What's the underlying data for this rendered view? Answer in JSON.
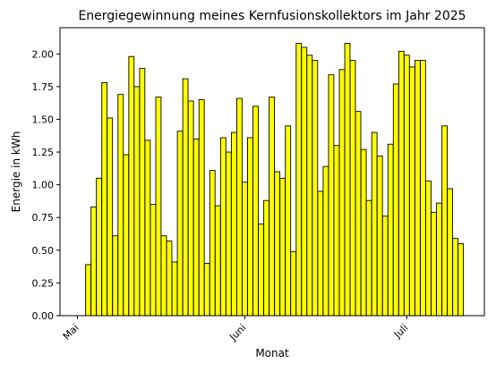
{
  "chart_data": {
    "type": "bar",
    "title": "Energiegewinnung meines Kernfusionskollektors im Jahr 2025",
    "xlabel": "Monat",
    "ylabel": "Energie in kWh",
    "ylim": [
      0,
      2.2
    ],
    "grid": false,
    "bar_color": "#ffff00",
    "edge_color": "#000000",
    "y_ticks": [
      "0.00",
      "0.25",
      "0.50",
      "0.75",
      "1.00",
      "1.25",
      "1.50",
      "1.75",
      "2.00"
    ],
    "x_ticks": [
      {
        "label": "Mai",
        "date": "2025-05-01"
      },
      {
        "label": "Juni",
        "date": "2025-06-01"
      },
      {
        "label": "Juli",
        "date": "2025-07-01"
      }
    ],
    "x": [
      "2025-05-03",
      "2025-05-04",
      "2025-05-05",
      "2025-05-06",
      "2025-05-07",
      "2025-05-08",
      "2025-05-09",
      "2025-05-10",
      "2025-05-11",
      "2025-05-12",
      "2025-05-13",
      "2025-05-14",
      "2025-05-15",
      "2025-05-16",
      "2025-05-17",
      "2025-05-18",
      "2025-05-19",
      "2025-05-20",
      "2025-05-21",
      "2025-05-22",
      "2025-05-23",
      "2025-05-24",
      "2025-05-25",
      "2025-05-26",
      "2025-05-27",
      "2025-05-28",
      "2025-05-29",
      "2025-05-30",
      "2025-05-31",
      "2025-06-01",
      "2025-06-02",
      "2025-06-03",
      "2025-06-04",
      "2025-06-05",
      "2025-06-06",
      "2025-06-07",
      "2025-06-08",
      "2025-06-09",
      "2025-06-10",
      "2025-06-11",
      "2025-06-12",
      "2025-06-13",
      "2025-06-14",
      "2025-06-15",
      "2025-06-16",
      "2025-06-17",
      "2025-06-18",
      "2025-06-19",
      "2025-06-20",
      "2025-06-21",
      "2025-06-22",
      "2025-06-23",
      "2025-06-24",
      "2025-06-25",
      "2025-06-26",
      "2025-06-27",
      "2025-06-28",
      "2025-06-29",
      "2025-06-30",
      "2025-07-01",
      "2025-07-02",
      "2025-07-03",
      "2025-07-04",
      "2025-07-05",
      "2025-07-06",
      "2025-07-07",
      "2025-07-08",
      "2025-07-09",
      "2025-07-10",
      "2025-07-11"
    ],
    "values": [
      0.39,
      0.83,
      1.05,
      1.78,
      1.51,
      0.61,
      1.69,
      1.23,
      1.98,
      1.75,
      1.89,
      1.34,
      0.85,
      1.67,
      0.61,
      0.57,
      0.41,
      1.41,
      1.81,
      1.64,
      1.35,
      1.65,
      0.4,
      1.11,
      0.84,
      1.36,
      1.25,
      1.4,
      1.66,
      1.02,
      1.36,
      1.6,
      0.7,
      0.88,
      1.67,
      1.1,
      1.05,
      1.45,
      0.49,
      2.08,
      2.05,
      1.99,
      1.95,
      0.95,
      1.14,
      1.84,
      1.3,
      1.88,
      2.08,
      1.95,
      1.56,
      1.27,
      0.88,
      1.4,
      1.22,
      0.76,
      1.31,
      1.77,
      2.02,
      1.99,
      1.9,
      1.95,
      1.95,
      1.03,
      0.79,
      0.86,
      1.45,
      0.97,
      0.59,
      0.55
    ]
  }
}
